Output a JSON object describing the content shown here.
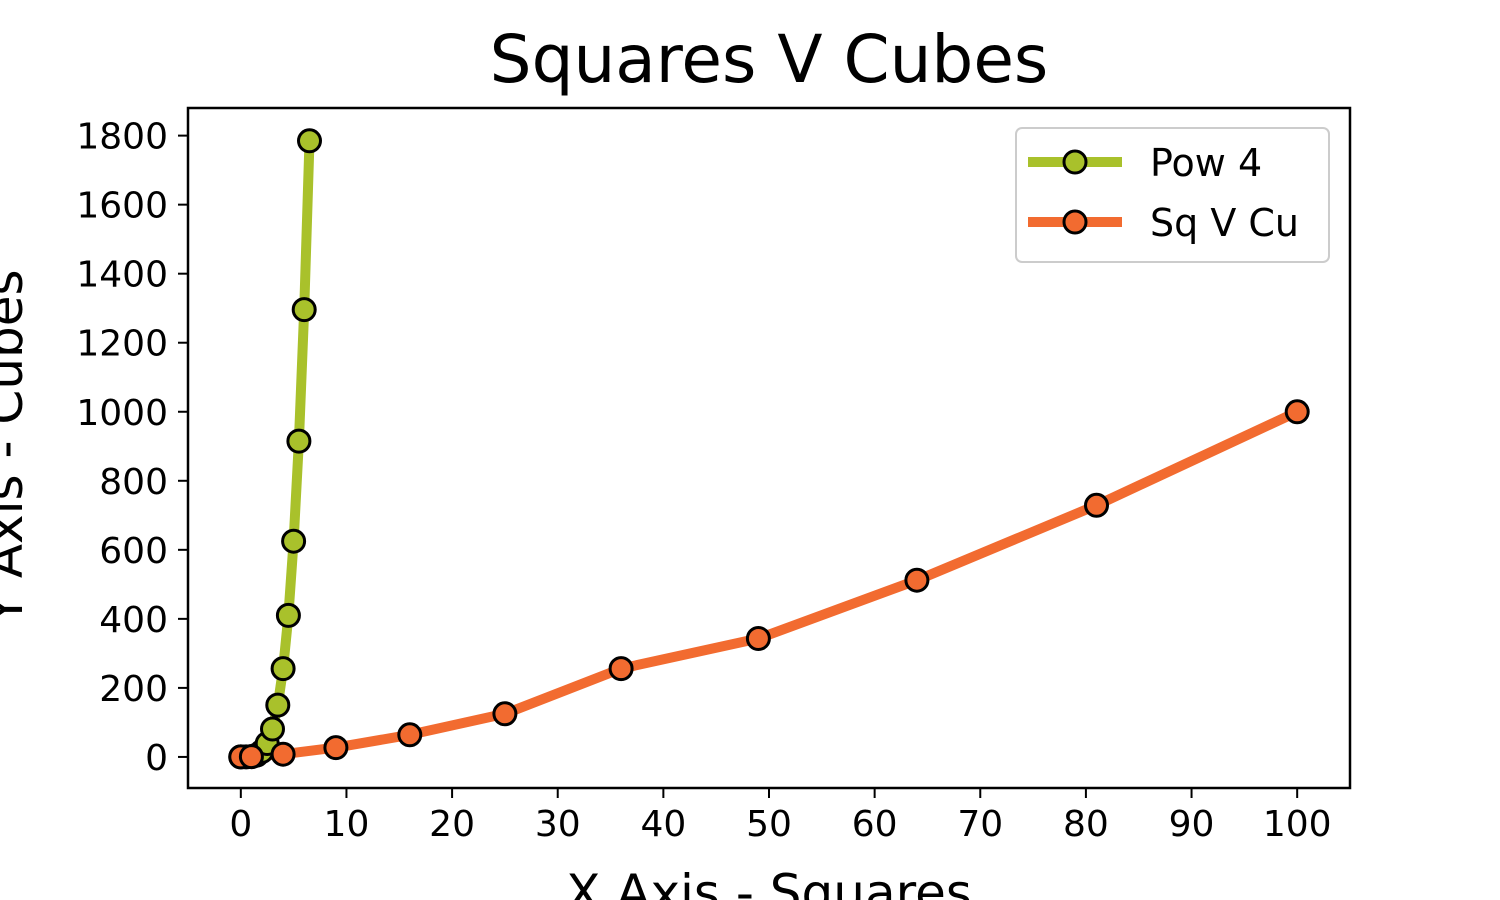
{
  "chart_data": {
    "type": "line",
    "title": "Squares V Cubes",
    "xlabel": "X Axis - Squares",
    "ylabel": "Y Axis - Cubes",
    "xlim": [
      -5,
      105
    ],
    "ylim": [
      -90,
      1880
    ],
    "x_ticks": [
      0,
      10,
      20,
      30,
      40,
      50,
      60,
      70,
      80,
      90,
      100
    ],
    "y_ticks": [
      0,
      200,
      400,
      600,
      800,
      1000,
      1200,
      1400,
      1600,
      1800
    ],
    "grid": false,
    "legend_placement": "top-right",
    "series": [
      {
        "name": "Pow 4",
        "color": "#a9c12b",
        "x": [
          0,
          0.5,
          1,
          1.5,
          2,
          2.5,
          3,
          3.5,
          4,
          4.5,
          5,
          5.5,
          6,
          6.5
        ],
        "y": [
          0,
          0.0625,
          1,
          5.0625,
          16,
          39.0625,
          81,
          150.0625,
          256,
          410.0625,
          625,
          915.0625,
          1296,
          1785.0625
        ]
      },
      {
        "name": "Sq V Cu",
        "color": "#f26b30",
        "x": [
          0,
          1,
          4,
          9,
          16,
          25,
          36,
          49,
          64,
          81,
          100
        ],
        "y": [
          0,
          1,
          8,
          27,
          64,
          125,
          256,
          343,
          512,
          729,
          1000
        ]
      }
    ]
  }
}
